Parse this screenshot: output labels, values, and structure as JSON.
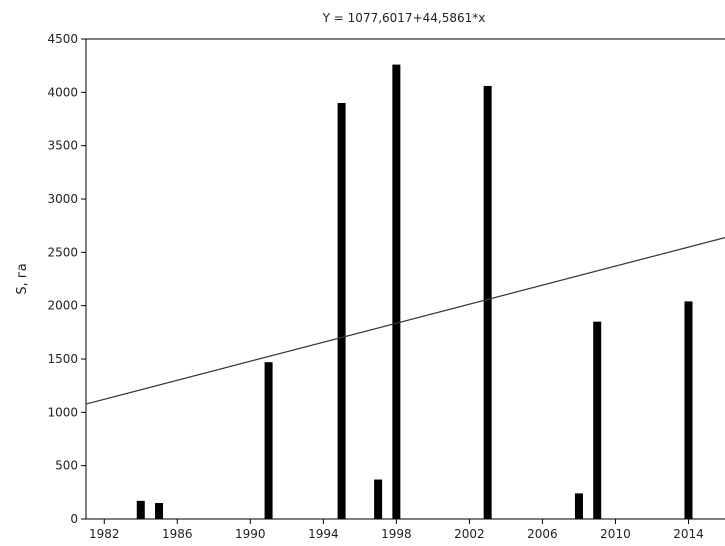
{
  "chart_data": {
    "type": "bar",
    "title": "Y = 1077,6017+44,5861*x",
    "ylabel": "S, га",
    "xlabel": "",
    "xlim": [
      1981,
      2016
    ],
    "ylim": [
      0,
      4500
    ],
    "x_ticks": [
      1982,
      1986,
      1990,
      1994,
      1998,
      2002,
      2006,
      2010,
      2014
    ],
    "y_ticks": [
      0,
      500,
      1000,
      1500,
      2000,
      2500,
      3000,
      3500,
      4000,
      4500
    ],
    "grid": false,
    "series": [
      {
        "x": [
          1984,
          1985,
          1991,
          1995,
          1997,
          1998,
          2003,
          2008,
          2009,
          2014
        ],
        "values": [
          170,
          150,
          1470,
          3900,
          370,
          4260,
          4060,
          240,
          1850,
          2040
        ],
        "color": "#000000"
      }
    ],
    "trend_line": {
      "intercept": 1077.6017,
      "slope": 44.5861,
      "x_origin": 1981,
      "color": "#333333"
    }
  }
}
